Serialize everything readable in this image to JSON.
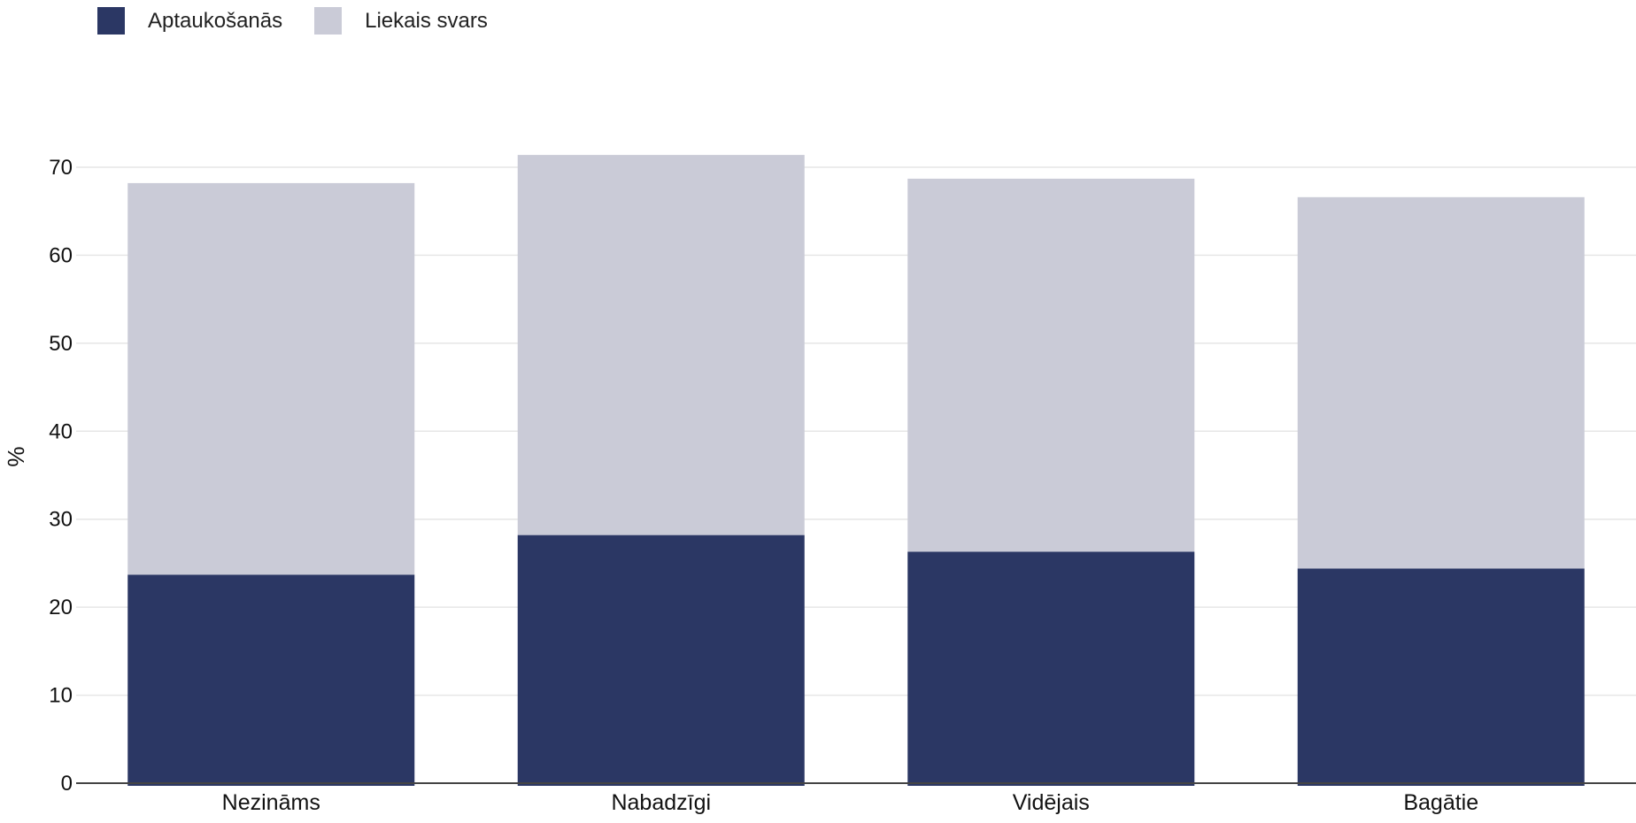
{
  "chart_data": {
    "type": "bar",
    "stacked": true,
    "title": "",
    "xlabel": "",
    "ylabel": "%",
    "ylim": [
      0,
      70
    ],
    "yticks": [
      0,
      10,
      20,
      30,
      40,
      50,
      60,
      70
    ],
    "grid": true,
    "legend_position": "top-left",
    "categories": [
      "Nezināms",
      "Nabadzīgi",
      "Vidējais",
      "Bagātie"
    ],
    "series": [
      {
        "name": "Aptaukošanās",
        "color": "#2b3764",
        "values": [
          23.7,
          28.2,
          26.3,
          24.4
        ]
      },
      {
        "name": "Liekais svars",
        "color": "#cacbd7",
        "values": [
          44.5,
          43.2,
          42.4,
          42.2
        ]
      }
    ]
  }
}
